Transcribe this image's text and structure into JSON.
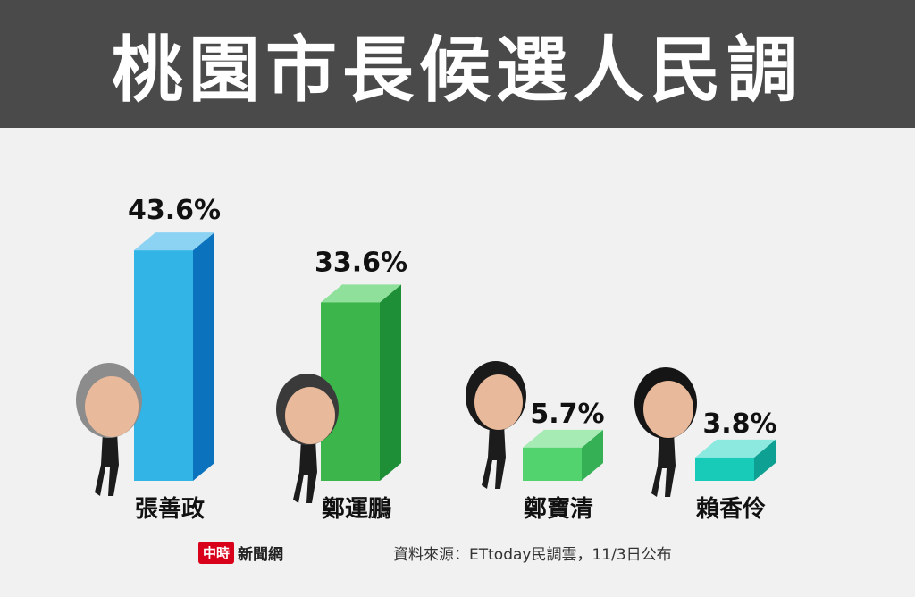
{
  "header": {
    "title": "桃園市長候選人民調"
  },
  "chart_data": {
    "type": "bar",
    "title": "桃園市長候選人民調",
    "categories": [
      "張善政",
      "鄭運鵬",
      "鄭寶清",
      "賴香伶"
    ],
    "values": [
      43.6,
      33.6,
      5.7,
      3.8
    ],
    "value_labels": [
      "43.6%",
      "33.6%",
      "5.7%",
      "3.8%"
    ],
    "ylim": [
      0,
      45
    ],
    "grid": false,
    "legend": "none",
    "colors": [
      {
        "front": "#32b4e6",
        "side": "#0b72be",
        "top": "#8cd3f3"
      },
      {
        "front": "#3cb64b",
        "side": "#1e8f37",
        "top": "#8ee09a"
      },
      {
        "front": "#52d36e",
        "side": "#35b055",
        "top": "#a6eab4"
      },
      {
        "front": "#17cbb8",
        "side": "#0ea092",
        "top": "#8ce9df"
      }
    ]
  },
  "footer": {
    "logo_badge": "中時",
    "logo_text": "新聞網",
    "source": "資料來源：ETtoday民調雲，11/3日公布"
  }
}
